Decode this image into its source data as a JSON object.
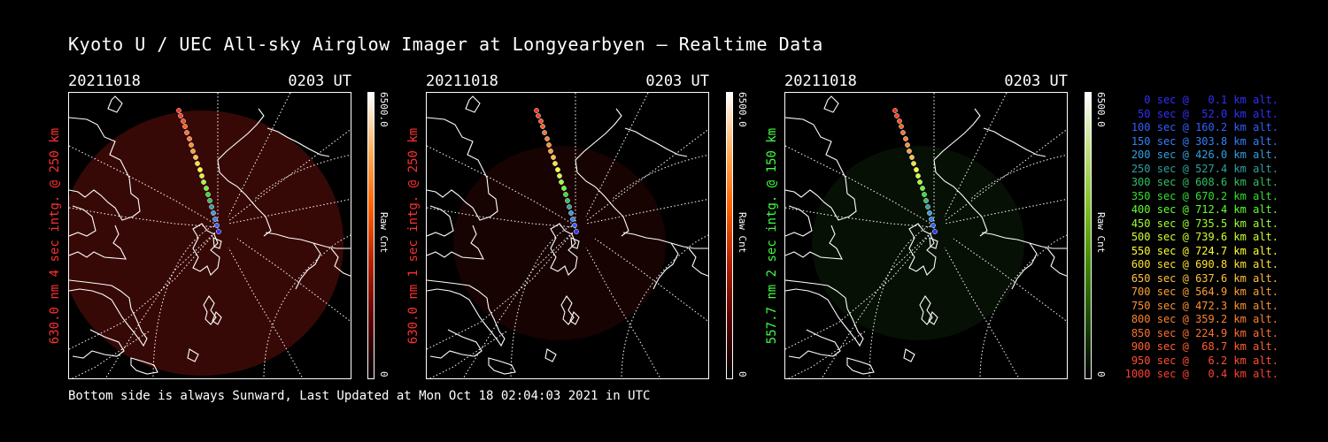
{
  "title": "Kyoto U / UEC All-sky Airglow Imager at Longyearbyen — Realtime Data",
  "footer": "Bottom side is always Sunward, Last Updated at Mon Oct 18 02:04:03 2021 in UTC",
  "panels": [
    {
      "date": "20211018",
      "time": "0203 UT",
      "ylabel": "630.0 nm 4 sec intg. @ 250 km",
      "ylabel_color": "#ff3030",
      "cbar_max": "6500.0",
      "cbar_min": "0",
      "cbar_unit": "Raw Cnt",
      "cbar_colors": [
        "#000000",
        "#5a0000",
        "#b02000",
        "#ff6000",
        "#ffb060",
        "#ffffff"
      ]
    },
    {
      "date": "20211018",
      "time": "0203 UT",
      "ylabel": "630.0 nm 1 sec intg. @ 250 km",
      "ylabel_color": "#ff3030",
      "cbar_max": "6500.0",
      "cbar_min": "0",
      "cbar_unit": "Raw Cnt",
      "cbar_colors": [
        "#000000",
        "#5a0000",
        "#b02000",
        "#ff6000",
        "#ffb060",
        "#ffffff"
      ]
    },
    {
      "date": "20211018",
      "time": "0203 UT",
      "ylabel": "557.7 nm 2 sec intg. @ 150 km",
      "ylabel_color": "#40ff40",
      "cbar_max": "6500.0",
      "cbar_min": "0",
      "cbar_unit": "Raw Cnt",
      "cbar_colors": [
        "#000000",
        "#1a4a00",
        "#3c8a00",
        "#80c020",
        "#c0e080",
        "#ffffff"
      ]
    }
  ],
  "legend": [
    {
      "text": "   0 sec @   0.1 km alt.",
      "color": "#3030ff"
    },
    {
      "text": "  50 sec @  52.0 km alt.",
      "color": "#3030ff"
    },
    {
      "text": " 100 sec @ 160.2 km alt.",
      "color": "#3060ff"
    },
    {
      "text": " 150 sec @ 303.8 km alt.",
      "color": "#3080ff"
    },
    {
      "text": " 200 sec @ 426.0 km alt.",
      "color": "#30a0e0"
    },
    {
      "text": " 250 sec @ 527.4 km alt.",
      "color": "#30a0a0"
    },
    {
      "text": " 300 sec @ 608.6 km alt.",
      "color": "#30c060"
    },
    {
      "text": " 350 sec @ 670.2 km alt.",
      "color": "#30e030"
    },
    {
      "text": " 400 sec @ 712.4 km alt.",
      "color": "#60ff30"
    },
    {
      "text": " 450 sec @ 735.5 km alt.",
      "color": "#a0ff30"
    },
    {
      "text": " 500 sec @ 739.6 km alt.",
      "color": "#d0ff30"
    },
    {
      "text": " 550 sec @ 724.7 km alt.",
      "color": "#ffff30"
    },
    {
      "text": " 600 sec @ 690.8 km alt.",
      "color": "#ffe030"
    },
    {
      "text": " 650 sec @ 637.6 km alt.",
      "color": "#ffc040"
    },
    {
      "text": " 700 sec @ 564.9 km alt.",
      "color": "#ffa030"
    },
    {
      "text": " 750 sec @ 472.3 km alt.",
      "color": "#ff9030"
    },
    {
      "text": " 800 sec @ 359.2 km alt.",
      "color": "#ff8030"
    },
    {
      "text": " 850 sec @ 224.9 km alt.",
      "color": "#ff7030"
    },
    {
      "text": " 900 sec @  68.7 km alt.",
      "color": "#ff6030"
    },
    {
      "text": " 950 sec @   6.2 km alt.",
      "color": "#ff5030"
    },
    {
      "text": "1000 sec @   0.4 km alt.",
      "color": "#ff4030"
    }
  ]
}
